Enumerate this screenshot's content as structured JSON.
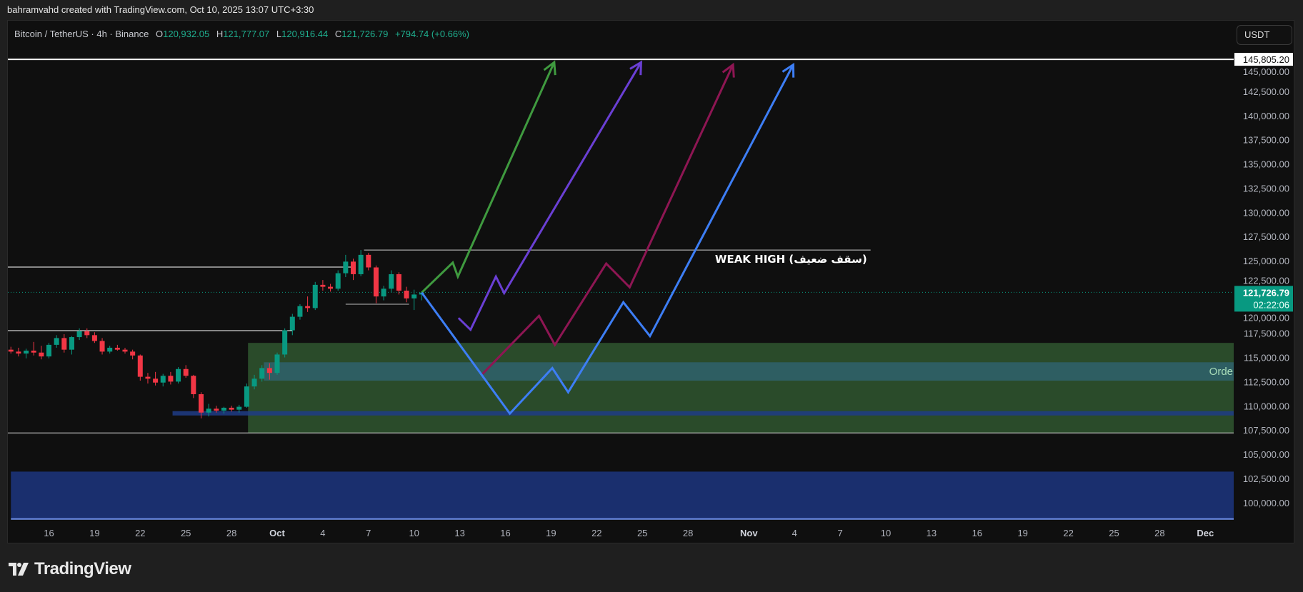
{
  "header": {
    "text": "bahramvahd created with TradingView.com, Oct 10, 2025 13:07 UTC+3:30"
  },
  "legend": {
    "symbol": "Bitcoin / TetherUS · 4h · Binance",
    "o_label": "O",
    "o": "120,932.05",
    "h_label": "H",
    "h": "121,777.07",
    "l_label": "L",
    "l": "120,916.44",
    "c_label": "C",
    "c": "121,726.79",
    "change": "+794.74 (+0.66%)"
  },
  "currency_button": "USDT",
  "footer": {
    "logo_text": "TradingView"
  },
  "colors": {
    "up": "#089981",
    "down": "#f23645",
    "green_arrow": "#3f9a3f",
    "purple_arrow": "#6a3fd4",
    "maroon_arrow": "#8e1653",
    "blue_arrow": "#3d7ef5",
    "demand_zone": "#2a4b2a",
    "order_block": "#2e5e62",
    "blue_zone": "#1a2f6e"
  },
  "chart_data": {
    "type": "candlestick",
    "symbol": "BTCUSDT",
    "y_ticks": [
      100000,
      102500,
      105000,
      107500,
      110000,
      112500,
      115000,
      117500,
      120000,
      122500,
      125000,
      127500,
      130000,
      132500,
      135000,
      137500,
      140000,
      142500,
      145000
    ],
    "y_tick_labels": [
      "100,000.00",
      "102,500.00",
      "105,000.00",
      "107,500.00",
      "110,000.00",
      "112,500.00",
      "115,000.00",
      "117,500.00",
      "120,000.00",
      "122,500.00",
      "125,000.00",
      "127,500.00",
      "130,000.00",
      "132,500.00",
      "135,000.00",
      "137,500.00",
      "140,000.00",
      "142,500.00",
      "145,000.00"
    ],
    "x_ticks": [
      {
        "date": "2025-09-16",
        "label": "16"
      },
      {
        "date": "2025-09-19",
        "label": "19"
      },
      {
        "date": "2025-09-22",
        "label": "22"
      },
      {
        "date": "2025-09-25",
        "label": "25"
      },
      {
        "date": "2025-09-28",
        "label": "28"
      },
      {
        "date": "2025-10-01",
        "label": "Oct",
        "bold": true
      },
      {
        "date": "2025-10-04",
        "label": "4"
      },
      {
        "date": "2025-10-07",
        "label": "7"
      },
      {
        "date": "2025-10-10",
        "label": "10"
      },
      {
        "date": "2025-10-13",
        "label": "13"
      },
      {
        "date": "2025-10-16",
        "label": "16"
      },
      {
        "date": "2025-10-19",
        "label": "19"
      },
      {
        "date": "2025-10-22",
        "label": "22"
      },
      {
        "date": "2025-10-25",
        "label": "25"
      },
      {
        "date": "2025-10-28",
        "label": "28"
      },
      {
        "date": "2025-11-01",
        "label": "Nov",
        "bold": true
      },
      {
        "date": "2025-11-04",
        "label": "4"
      },
      {
        "date": "2025-11-07",
        "label": "7"
      },
      {
        "date": "2025-11-10",
        "label": "10"
      },
      {
        "date": "2025-11-13",
        "label": "13"
      },
      {
        "date": "2025-11-16",
        "label": "16"
      },
      {
        "date": "2025-11-19",
        "label": "19"
      },
      {
        "date": "2025-11-22",
        "label": "22"
      },
      {
        "date": "2025-11-25",
        "label": "25"
      },
      {
        "date": "2025-11-28",
        "label": "28"
      },
      {
        "date": "2025-12-01",
        "label": "Dec",
        "bold": true
      }
    ],
    "last_price": 121726.79,
    "last_price_label": "121,726.79",
    "countdown": "02:22:06",
    "top_level": 145805.2,
    "top_level_label": "145,805.20",
    "candle_start": "2025-09-13T12:00",
    "candle_step_hours": 12,
    "candles": [
      [
        115800,
        116100,
        115400,
        115600
      ],
      [
        115600,
        116000,
        115100,
        115400
      ],
      [
        115400,
        115900,
        114900,
        115700
      ],
      [
        115700,
        116600,
        115200,
        115500
      ],
      [
        115500,
        116200,
        114800,
        115100
      ],
      [
        115100,
        116500,
        114900,
        116300
      ],
      [
        116300,
        117300,
        116000,
        117000
      ],
      [
        117000,
        117400,
        115500,
        115800
      ],
      [
        115800,
        117200,
        115300,
        117100
      ],
      [
        117100,
        118000,
        116800,
        117700
      ],
      [
        117700,
        118000,
        117000,
        117300
      ],
      [
        117300,
        117600,
        116500,
        116700
      ],
      [
        116700,
        117000,
        115300,
        115600
      ],
      [
        115600,
        116200,
        115400,
        116000
      ],
      [
        116000,
        116300,
        115700,
        115800
      ],
      [
        115800,
        116000,
        115400,
        115600
      ],
      [
        115600,
        115800,
        114800,
        115200
      ],
      [
        115200,
        115300,
        112600,
        113000
      ],
      [
        113000,
        113400,
        112300,
        112800
      ],
      [
        112800,
        113500,
        112100,
        112400
      ],
      [
        112400,
        113300,
        112000,
        113100
      ],
      [
        113100,
        113500,
        112200,
        112500
      ],
      [
        112500,
        114000,
        112300,
        113800
      ],
      [
        113800,
        114200,
        112900,
        113100
      ],
      [
        113100,
        113200,
        110800,
        111200
      ],
      [
        111200,
        111400,
        108700,
        109300
      ],
      [
        109300,
        110200,
        108900,
        109700
      ],
      [
        109700,
        110000,
        109300,
        109500
      ],
      [
        109500,
        109900,
        109200,
        109800
      ],
      [
        109800,
        110000,
        109400,
        109600
      ],
      [
        109600,
        110100,
        109300,
        109900
      ],
      [
        109900,
        112300,
        109800,
        112000
      ],
      [
        112000,
        113200,
        111700,
        112800
      ],
      [
        112800,
        114200,
        112500,
        113900
      ],
      [
        113900,
        114400,
        112700,
        113400
      ],
      [
        113400,
        115500,
        113200,
        115300
      ],
      [
        115300,
        118000,
        115000,
        117800
      ],
      [
        117800,
        119500,
        117300,
        119200
      ],
      [
        119200,
        120500,
        118900,
        120300
      ],
      [
        120300,
        121300,
        119700,
        120100
      ],
      [
        120100,
        122800,
        119900,
        122500
      ],
      [
        122500,
        123000,
        121900,
        122300
      ],
      [
        122300,
        122600,
        121800,
        122100
      ],
      [
        122100,
        124000,
        121900,
        123700
      ],
      [
        123700,
        125600,
        123300,
        124900
      ],
      [
        124900,
        125200,
        123000,
        123600
      ],
      [
        123600,
        126100,
        123400,
        125600
      ],
      [
        125600,
        125800,
        124000,
        124300
      ],
      [
        124300,
        124500,
        120600,
        121300
      ],
      [
        121300,
        122400,
        120900,
        122100
      ],
      [
        122100,
        124000,
        121700,
        123600
      ],
      [
        123600,
        123800,
        121500,
        121900
      ],
      [
        121900,
        122300,
        120700,
        121100
      ],
      [
        121100,
        122000,
        119900,
        121500
      ],
      [
        121500,
        121800,
        120900,
        121700
      ]
    ],
    "zones": [
      {
        "name": "blue-zone",
        "from": "2025-09-13T12:00",
        "to": "end",
        "low": 98300,
        "high": 103200,
        "color": "#1a2f6e",
        "bottom_line": "#6f8fe8"
      },
      {
        "name": "demand-zone",
        "from": "2025-09-29T02:00",
        "to": "end",
        "low": 107200,
        "high": 116500,
        "color": "#2a4b2a"
      },
      {
        "name": "order-block",
        "from": "2025-09-30T03:00",
        "to": "end",
        "low": 112600,
        "high": 114500,
        "color": "#2e5e62",
        "label": "Order"
      },
      {
        "name": "liquidity-band",
        "from": "2025-09-24T03:00",
        "to": "end",
        "low": 109000,
        "high": 109450,
        "color": "#1e3c86"
      }
    ],
    "levels": [
      {
        "name": "top-level-line",
        "from": "start",
        "to": "end",
        "price": 145805.2,
        "color": "#ffffff",
        "width": 2
      },
      {
        "name": "weak-high-line",
        "from": "2025-10-06T17:00",
        "to": "2025-11-09T00:00",
        "price": 126100,
        "color": "#d0d0d0",
        "width": 1,
        "label": "WEAK HIGH (سقف ضعیف)"
      },
      {
        "name": "range-high-line",
        "from": "start",
        "to": "2025-10-06T00:00",
        "price": 124340,
        "color": "#ffffff",
        "width": 1
      },
      {
        "name": "range-mid-line",
        "from": "start",
        "to": "2025-10-02T00:00",
        "price": 117770,
        "color": "#ffffff",
        "width": 1
      },
      {
        "name": "range-low-line",
        "from": "2025-10-05T12:00",
        "to": "2025-10-09T16:00",
        "price": 120500,
        "color": "#bbbbbb",
        "width": 1
      },
      {
        "name": "bottom-level-line",
        "from": "start",
        "to": "end",
        "price": 107200,
        "color": "#dddddd",
        "width": 1
      }
    ],
    "paths": [
      {
        "name": "green-arrow",
        "color": "#3f9a3f",
        "points": [
          [
            "2025-10-10T12:00",
            121700
          ],
          [
            "2025-10-12T13:00",
            124800
          ],
          [
            "2025-10-12T21:00",
            123350
          ],
          [
            "2025-10-19T05:00",
            145500
          ]
        ]
      },
      {
        "name": "purple-arrow",
        "color": "#6a3fd4",
        "points": [
          [
            "2025-10-12T22:00",
            119070
          ],
          [
            "2025-10-13T17:00",
            117860
          ],
          [
            "2025-10-15T09:00",
            123350
          ],
          [
            "2025-10-15T22:00",
            121640
          ],
          [
            "2025-10-24T22:00",
            145500
          ]
        ]
      },
      {
        "name": "maroon-arrow",
        "color": "#8e1653",
        "points": [
          [
            "2025-10-14T12:00",
            113300
          ],
          [
            "2025-10-18T05:00",
            119300
          ],
          [
            "2025-10-19T06:00",
            116300
          ],
          [
            "2025-10-22T15:00",
            124700
          ],
          [
            "2025-10-24T04:00",
            122250
          ],
          [
            "2025-10-30T23:00",
            145250
          ]
        ]
      },
      {
        "name": "blue-arrow",
        "color": "#3d7ef5",
        "points": [
          [
            "2025-10-10T12:00",
            121700
          ],
          [
            "2025-10-16T07:00",
            109200
          ],
          [
            "2025-10-19T02:00",
            113900
          ],
          [
            "2025-10-20T03:00",
            111400
          ],
          [
            "2025-10-23T18:00",
            120700
          ],
          [
            "2025-10-25T12:00",
            117200
          ],
          [
            "2025-11-03T22:00",
            145250
          ]
        ]
      }
    ]
  }
}
